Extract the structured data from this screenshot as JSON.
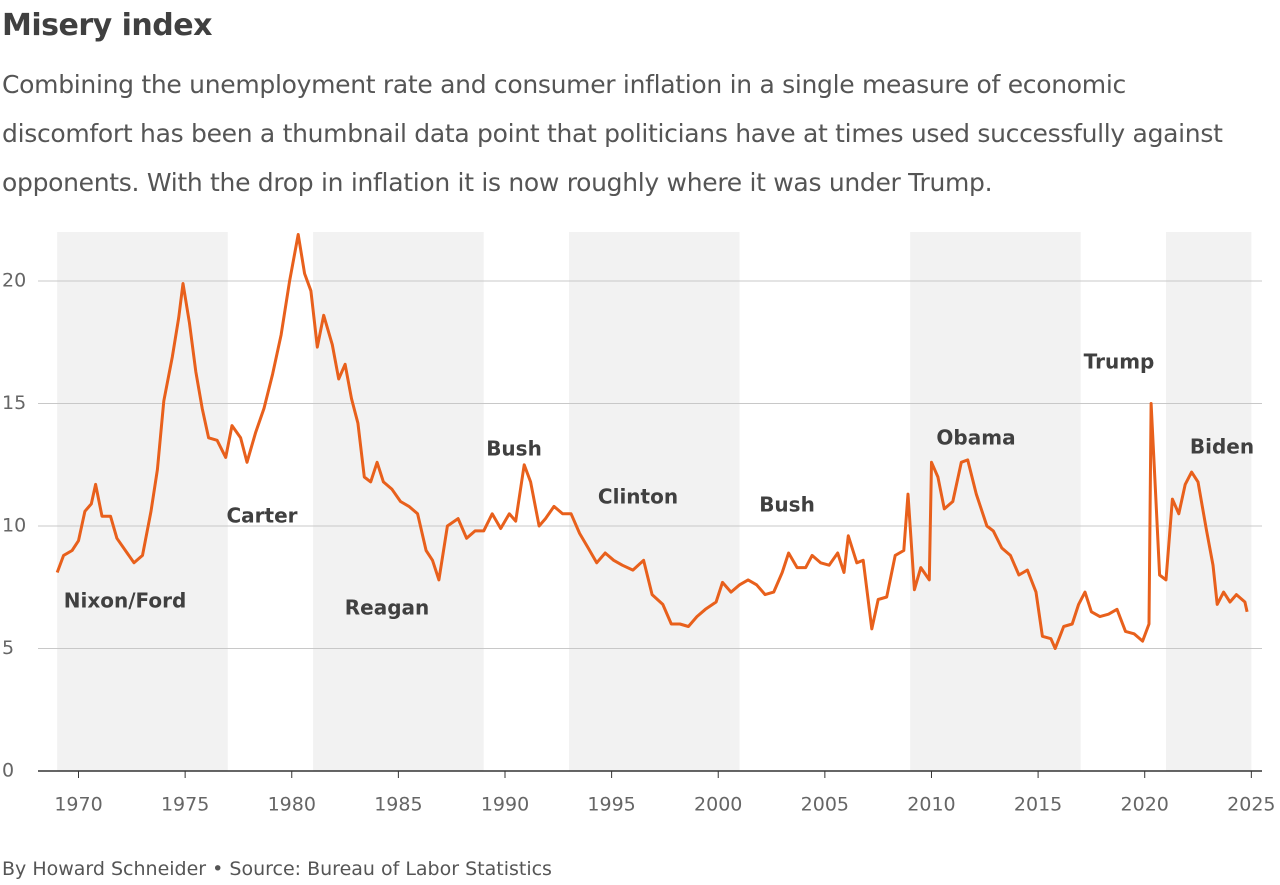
{
  "chart_data": {
    "type": "line",
    "title": "Misery index",
    "subtitle": "Combining the unemployment rate and consumer inflation in a single measure of economic discomfort has been a thumbnail data point that politicians have at times used successfully against opponents. With the drop in inflation it is now roughly where it was under Trump.",
    "source": "By Howard Schneider • Source: Bureau of Labor Statistics",
    "color": "#e8601c",
    "grid": true,
    "xlim": [
      1968.1,
      2025.5
    ],
    "xticks": [
      1970,
      1975,
      1980,
      1985,
      1990,
      1995,
      2000,
      2005,
      2010,
      2015,
      2020,
      2025
    ],
    "ylim": [
      0,
      22
    ],
    "yticks": [
      0,
      5,
      10,
      15,
      20
    ],
    "terms": [
      {
        "name": "Nixon/Ford",
        "start": 1969,
        "end": 1977,
        "shaded": true
      },
      {
        "name": "Carter",
        "start": 1977,
        "end": 1981,
        "shaded": false
      },
      {
        "name": "Reagan",
        "start": 1981,
        "end": 1989,
        "shaded": true
      },
      {
        "name": "Bush",
        "start": 1989,
        "end": 1993,
        "shaded": false
      },
      {
        "name": "Clinton",
        "start": 1993,
        "end": 2001,
        "shaded": true
      },
      {
        "name": "Bush",
        "start": 2001,
        "end": 2009,
        "shaded": false
      },
      {
        "name": "Obama",
        "start": 2009,
        "end": 2017,
        "shaded": true
      },
      {
        "name": "Trump",
        "start": 2017,
        "end": 2021,
        "shaded": false
      },
      {
        "name": "Biden",
        "start": 2021,
        "end": 2025,
        "shaded": true
      }
    ],
    "x": [
      1969.0,
      1969.3,
      1969.7,
      1970.0,
      1970.3,
      1970.6,
      1970.8,
      1971.1,
      1971.5,
      1971.8,
      1972.2,
      1972.6,
      1973.0,
      1973.4,
      1973.7,
      1974.0,
      1974.4,
      1974.7,
      1974.9,
      1975.2,
      1975.5,
      1975.8,
      1976.1,
      1976.5,
      1976.9,
      1977.2,
      1977.6,
      1977.9,
      1978.3,
      1978.7,
      1979.1,
      1979.5,
      1979.9,
      1980.3,
      1980.6,
      1980.9,
      1981.2,
      1981.5,
      1981.9,
      1982.2,
      1982.5,
      1982.8,
      1983.1,
      1983.4,
      1983.7,
      1984.0,
      1984.3,
      1984.7,
      1985.1,
      1985.5,
      1985.9,
      1986.3,
      1986.6,
      1986.9,
      1987.3,
      1987.8,
      1988.2,
      1988.6,
      1989.0,
      1989.4,
      1989.8,
      1990.2,
      1990.5,
      1990.9,
      1991.2,
      1991.6,
      1991.9,
      1992.3,
      1992.7,
      1993.1,
      1993.5,
      1993.9,
      1994.3,
      1994.7,
      1995.1,
      1995.5,
      1996.0,
      1996.5,
      1996.9,
      1997.4,
      1997.8,
      1998.2,
      1998.6,
      1999.0,
      1999.4,
      1999.9,
      2000.2,
      2000.6,
      2001.0,
      2001.4,
      2001.8,
      2002.2,
      2002.6,
      2003.0,
      2003.3,
      2003.7,
      2004.1,
      2004.4,
      2004.8,
      2005.2,
      2005.6,
      2005.9,
      2006.1,
      2006.5,
      2006.8,
      2007.2,
      2007.5,
      2007.9,
      2008.3,
      2008.7,
      2008.9,
      2009.2,
      2009.5,
      2009.9,
      2010.0,
      2010.3,
      2010.6,
      2011.0,
      2011.4,
      2011.7,
      2012.1,
      2012.6,
      2012.9,
      2013.3,
      2013.7,
      2014.1,
      2014.5,
      2014.9,
      2015.2,
      2015.6,
      2015.8,
      2016.2,
      2016.6,
      2016.9,
      2017.2,
      2017.5,
      2017.9,
      2018.3,
      2018.7,
      2019.1,
      2019.5,
      2019.9,
      2020.2,
      2020.3,
      2020.5,
      2020.7,
      2021.0,
      2021.3,
      2021.6,
      2021.9,
      2022.2,
      2022.5,
      2022.9,
      2023.2,
      2023.4,
      2023.7,
      2024.0,
      2024.3,
      2024.7,
      2024.8
    ],
    "values": [
      8.1,
      8.8,
      9.0,
      9.4,
      10.6,
      10.9,
      11.7,
      10.4,
      10.4,
      9.5,
      9.0,
      8.5,
      8.8,
      10.6,
      12.3,
      15.1,
      16.9,
      18.5,
      19.9,
      18.3,
      16.3,
      14.8,
      13.6,
      13.5,
      12.8,
      14.1,
      13.6,
      12.6,
      13.8,
      14.8,
      16.2,
      17.8,
      20.0,
      21.9,
      20.3,
      19.6,
      17.3,
      18.6,
      17.4,
      16.0,
      16.6,
      15.2,
      14.2,
      12.0,
      11.8,
      12.6,
      11.8,
      11.5,
      11.0,
      10.8,
      10.5,
      9.0,
      8.6,
      7.8,
      10.0,
      10.3,
      9.5,
      9.8,
      9.8,
      10.5,
      9.9,
      10.5,
      10.2,
      12.5,
      11.8,
      10.0,
      10.3,
      10.8,
      10.5,
      10.5,
      9.7,
      9.1,
      8.5,
      8.9,
      8.6,
      8.4,
      8.2,
      8.6,
      7.2,
      6.8,
      6.0,
      6.0,
      5.9,
      6.3,
      6.6,
      6.9,
      7.7,
      7.3,
      7.6,
      7.8,
      7.6,
      7.2,
      7.3,
      8.1,
      8.9,
      8.3,
      8.3,
      8.8,
      8.5,
      8.4,
      8.9,
      8.1,
      9.6,
      8.5,
      8.6,
      5.8,
      7.0,
      7.1,
      8.8,
      9.0,
      11.3,
      7.4,
      8.3,
      7.8,
      12.6,
      12.0,
      10.7,
      11.0,
      12.6,
      12.7,
      11.3,
      10.0,
      9.8,
      9.1,
      8.8,
      8.0,
      8.2,
      7.3,
      5.5,
      5.4,
      5.0,
      5.9,
      6.0,
      6.8,
      7.3,
      6.5,
      6.3,
      6.4,
      6.6,
      5.7,
      5.6,
      5.3,
      6.0,
      15.0,
      11.5,
      8.0,
      7.8,
      11.1,
      10.5,
      11.7,
      12.2,
      11.8,
      9.8,
      8.4,
      6.8,
      7.3,
      6.9,
      7.2,
      6.9,
      6.5
    ]
  }
}
